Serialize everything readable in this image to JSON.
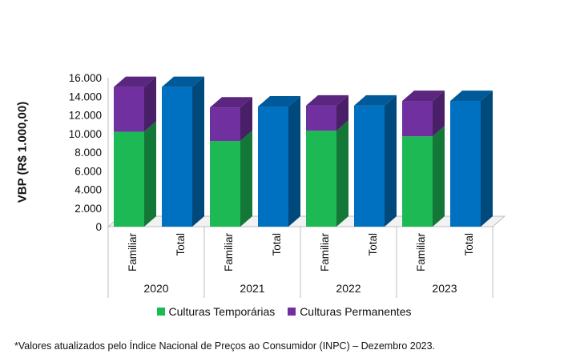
{
  "chart_data": {
    "type": "bar",
    "stacked": true,
    "style": "3d",
    "ylabel": "VBP (R$ 1.000,00)",
    "ylim": [
      0,
      16000
    ],
    "yticks": [
      0,
      2000,
      4000,
      6000,
      8000,
      10000,
      12000,
      14000,
      16000
    ],
    "ytick_labels": [
      "0",
      "2.000",
      "4.000",
      "6.000",
      "8.000",
      "10.000",
      "12.000",
      "14.000",
      "16.000"
    ],
    "grid": false,
    "groups": [
      {
        "label": "2020",
        "bars": [
          {
            "label": "Familiar",
            "segments": [
              {
                "series": "Culturas Temporárias",
                "value": 10200
              },
              {
                "series": "Culturas Permanentes",
                "value": 4800
              }
            ]
          },
          {
            "label": "Total",
            "segments": [
              {
                "series": "Total",
                "value": 15000
              }
            ]
          }
        ]
      },
      {
        "label": "2021",
        "bars": [
          {
            "label": "Familiar",
            "segments": [
              {
                "series": "Culturas Temporárias",
                "value": 9200
              },
              {
                "series": "Culturas Permanentes",
                "value": 3600
              }
            ]
          },
          {
            "label": "Total",
            "segments": [
              {
                "series": "Total",
                "value": 12900
              }
            ]
          }
        ]
      },
      {
        "label": "2022",
        "bars": [
          {
            "label": "Familiar",
            "segments": [
              {
                "series": "Culturas Temporárias",
                "value": 10300
              },
              {
                "series": "Culturas Permanentes",
                "value": 2700
              }
            ]
          },
          {
            "label": "Total",
            "segments": [
              {
                "series": "Total",
                "value": 13000
              }
            ]
          }
        ]
      },
      {
        "label": "2023",
        "bars": [
          {
            "label": "Familiar",
            "segments": [
              {
                "series": "Culturas Temporárias",
                "value": 9700
              },
              {
                "series": "Culturas Permanentes",
                "value": 3800
              }
            ]
          },
          {
            "label": "Total",
            "segments": [
              {
                "series": "Total",
                "value": 13500
              }
            ]
          }
        ]
      }
    ],
    "legend": {
      "placement": "bottom",
      "entries": [
        {
          "name": "Culturas Temporárias",
          "color": "#1db954"
        },
        {
          "name": "Culturas Permanentes",
          "color": "#7030a0"
        }
      ]
    },
    "colors": {
      "Culturas Temporárias": "#1db954",
      "Culturas Permanentes": "#7030a0",
      "Total": "#0070c0"
    }
  },
  "footnote": "*Valores atualizados pelo Índice Nacional de Preços ao Consumidor (INPC) – Dezembro 2023."
}
